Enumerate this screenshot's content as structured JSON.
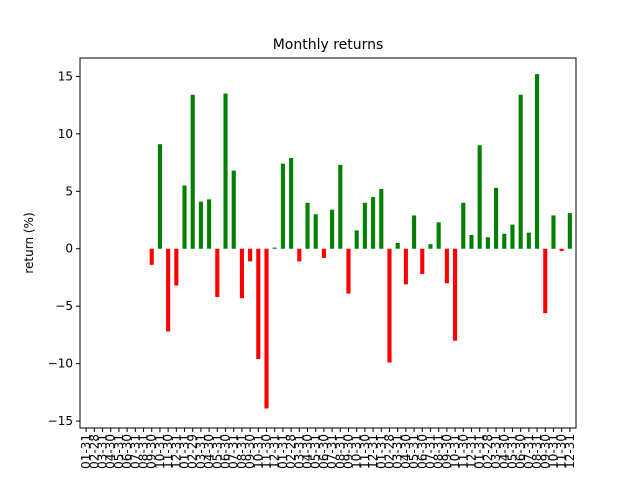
{
  "chart_data": {
    "type": "bar",
    "title": "Monthly returns",
    "xlabel": "",
    "ylabel": "return (%)",
    "ylim": [
      -15.6,
      16.6
    ],
    "yticks": [
      -15,
      -10,
      -5,
      0,
      5,
      10,
      15
    ],
    "grid": false,
    "colors": {
      "positive": "#008000",
      "negative": "#ff0000"
    },
    "categories": [
      "01-31",
      "02-28",
      "03-31",
      "04-30",
      "05-31",
      "06-30",
      "07-31",
      "08-31",
      "09-30",
      "10-31",
      "11-30",
      "12-31",
      "01-31",
      "02-29",
      "03-31",
      "04-30",
      "05-31",
      "06-30",
      "07-31",
      "08-31",
      "09-30",
      "10-31",
      "11-30",
      "12-31",
      "01-31",
      "02-28",
      "03-31",
      "04-30",
      "05-31",
      "06-30",
      "07-31",
      "08-31",
      "09-30",
      "10-31",
      "11-30",
      "12-31",
      "01-31",
      "02-28",
      "03-31",
      "04-30",
      "05-31",
      "06-30",
      "07-31",
      "08-31",
      "09-30",
      "10-31",
      "11-30",
      "12-31",
      "01-31",
      "02-28",
      "03-31",
      "04-30",
      "05-31",
      "06-30",
      "07-31",
      "08-31",
      "09-30",
      "10-31",
      "11-30",
      "12-31"
    ],
    "values": [
      0,
      0,
      0,
      0,
      0,
      0,
      0,
      0,
      -1.4,
      9.1,
      -7.2,
      -3.2,
      5.5,
      13.4,
      4.1,
      4.3,
      -4.2,
      13.5,
      6.8,
      -4.3,
      -1.1,
      -9.6,
      -13.9,
      0.1,
      7.4,
      7.9,
      -1.1,
      4.0,
      3.0,
      -0.8,
      3.4,
      7.3,
      -3.9,
      1.6,
      4.0,
      4.5,
      5.2,
      -9.9,
      0.5,
      -3.1,
      2.9,
      -2.2,
      0.4,
      2.3,
      -3.0,
      -8.0,
      4.0,
      1.2,
      9.0,
      1.0,
      5.3,
      1.3,
      2.1,
      13.4,
      1.4,
      15.2,
      -5.6,
      2.9,
      -0.2,
      3.1
    ]
  }
}
